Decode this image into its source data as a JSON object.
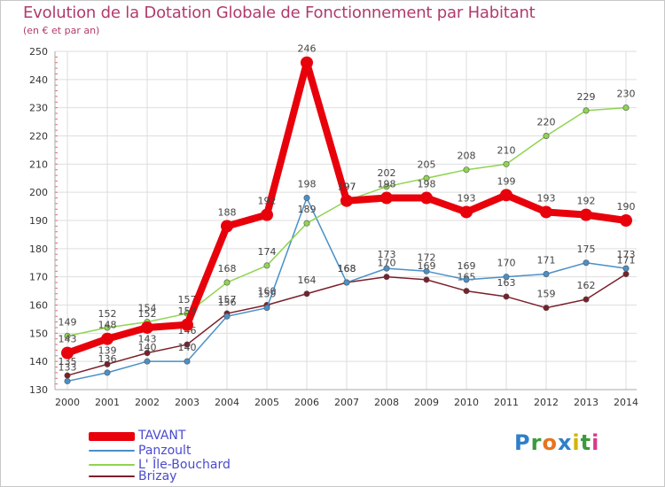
{
  "header": {
    "title": "Evolution de la Dotation Globale de Fonctionnement par Habitant",
    "subtitle": "(en € et par an)"
  },
  "logo": {
    "letters": [
      "P",
      "r",
      "o",
      "x",
      "i",
      "t",
      "i"
    ],
    "colors": [
      "#2f7fc9",
      "#3c9a3c",
      "#e8731e",
      "#2f7fc9",
      "#d4b400",
      "#3c9a3c",
      "#d93b8c"
    ]
  },
  "chart_data": {
    "type": "line",
    "title": "Evolution de la Dotation Globale de Fonctionnement par Habitant",
    "subtitle": "(en € et par an)",
    "xlabel": "",
    "ylabel": "",
    "ylim": [
      130,
      250
    ],
    "yticks": [
      130,
      140,
      150,
      160,
      170,
      180,
      190,
      200,
      210,
      220,
      230,
      240,
      250
    ],
    "grid": true,
    "legend_position": "bottom-left",
    "categories": [
      "2000",
      "2001",
      "2002",
      "2003",
      "2004",
      "2005",
      "2006",
      "2007",
      "2008",
      "2009",
      "2010",
      "2011",
      "2012",
      "2013",
      "2014"
    ],
    "series": [
      {
        "name": "TAVANT",
        "color": "#e8000b",
        "values": [
          143,
          148,
          152,
          153,
          188,
          192,
          246,
          197,
          198,
          198,
          193,
          199,
          193,
          192,
          190
        ]
      },
      {
        "name": "Panzoult",
        "color": "#4a90c8",
        "values": [
          133,
          136,
          140,
          140,
          156,
          159,
          198,
          168,
          173,
          172,
          169,
          170,
          171,
          175,
          173
        ]
      },
      {
        "name": "L' Île-Bouchard",
        "color": "#8fd450",
        "values": [
          149,
          152,
          154,
          157,
          168,
          174,
          189,
          197,
          202,
          205,
          208,
          210,
          220,
          229,
          230
        ]
      },
      {
        "name": "Brizay",
        "color": "#7b1f2a",
        "values": [
          135,
          139,
          143,
          146,
          157,
          160,
          164,
          168,
          170,
          169,
          165,
          163,
          159,
          162,
          171
        ]
      }
    ]
  }
}
